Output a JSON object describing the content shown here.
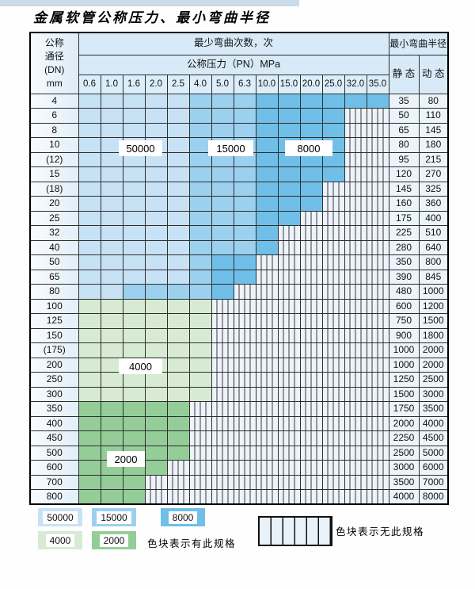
{
  "page_title": "金属软管公称压力、最小弯曲半径",
  "colors": {
    "b1": "#c8e2f5",
    "b2": "#9bd0ef",
    "b3": "#6fbfe9",
    "g1": "#d7ebd3",
    "g2": "#94cd98",
    "nospec_bg": "#edf3fa",
    "header_bg": "#d8eaf8",
    "grid_line": "#2e2e2e"
  },
  "zone_labels": {
    "b1": "50000",
    "b2": "15000",
    "b3": "8000",
    "g1": "4000",
    "g2": "2000"
  },
  "legend": {
    "items": [
      {
        "value": "50000",
        "color": "b1"
      },
      {
        "value": "15000",
        "color": "b2"
      },
      {
        "value": "8000",
        "color": "b3"
      },
      {
        "value": "4000",
        "color": "g1"
      },
      {
        "value": "2000",
        "color": "g2"
      }
    ],
    "has_spec_text": "色块表示有此规格",
    "no_spec_text": "色块表示无此规格"
  },
  "table": {
    "header": {
      "dn_lines": [
        "公称",
        "通径",
        "(DN)",
        "mm"
      ],
      "bend_cycles_title": "最少弯曲次数，次",
      "pressure_title": "公称压力（PN）MPa",
      "pressure_columns": [
        "0.6",
        "1.0",
        "1.6",
        "2.0",
        "2.5",
        "4.0",
        "5.0",
        "6.3",
        "10.0",
        "15.0",
        "20.0",
        "25.0",
        "32.0",
        "35.0"
      ],
      "radius_title": "最小弯曲半径",
      "static_label": "静 态",
      "dynamic_label": "动 态"
    },
    "rows": [
      {
        "dn": "4",
        "cells": [
          "b1",
          "b1",
          "b1",
          "b1",
          "b1",
          "b2",
          "b2",
          "b2",
          "b3",
          "b3",
          "b3",
          "b3",
          "b3",
          "b3"
        ],
        "static": "35",
        "dynamic": "80"
      },
      {
        "dn": "6",
        "cells": [
          "b1",
          "b1",
          "b1",
          "b1",
          "b1",
          "b2",
          "b2",
          "b2",
          "b3",
          "b3",
          "b3",
          "b3",
          "x",
          "x"
        ],
        "static": "50",
        "dynamic": "110"
      },
      {
        "dn": "8",
        "cells": [
          "b1",
          "b1",
          "b1",
          "b1",
          "b1",
          "b2",
          "b2",
          "b2",
          "b3",
          "b3",
          "b3",
          "b3",
          "x",
          "x"
        ],
        "static": "65",
        "dynamic": "145"
      },
      {
        "dn": "10",
        "cells": [
          "b1",
          "b1",
          "b1",
          "b1",
          "b1",
          "b2",
          "b2",
          "b2",
          "b3",
          "b3",
          "b3",
          "b3",
          "x",
          "x"
        ],
        "static": "80",
        "dynamic": "180"
      },
      {
        "dn": "(12)",
        "cells": [
          "b1",
          "b1",
          "b1",
          "b1",
          "b1",
          "b2",
          "b2",
          "b2",
          "b3",
          "b3",
          "b3",
          "b3",
          "x",
          "x"
        ],
        "static": "95",
        "dynamic": "215"
      },
      {
        "dn": "15",
        "cells": [
          "b1",
          "b1",
          "b1",
          "b1",
          "b1",
          "b2",
          "b2",
          "b2",
          "b3",
          "b3",
          "b3",
          "b3",
          "x",
          "x"
        ],
        "static": "120",
        "dynamic": "270"
      },
      {
        "dn": "(18)",
        "cells": [
          "b1",
          "b1",
          "b1",
          "b1",
          "b1",
          "b2",
          "b2",
          "b2",
          "b3",
          "b3",
          "b3",
          "x",
          "x",
          "x"
        ],
        "static": "145",
        "dynamic": "325"
      },
      {
        "dn": "20",
        "cells": [
          "b1",
          "b1",
          "b1",
          "b1",
          "b1",
          "b2",
          "b2",
          "b2",
          "b3",
          "b3",
          "b3",
          "x",
          "x",
          "x"
        ],
        "static": "160",
        "dynamic": "360"
      },
      {
        "dn": "25",
        "cells": [
          "b1",
          "b1",
          "b1",
          "b1",
          "b1",
          "b2",
          "b2",
          "b2",
          "b3",
          "b3",
          "x",
          "x",
          "x",
          "x"
        ],
        "static": "175",
        "dynamic": "400"
      },
      {
        "dn": "32",
        "cells": [
          "b1",
          "b1",
          "b1",
          "b1",
          "b1",
          "b2",
          "b2",
          "b2",
          "b3",
          "x",
          "x",
          "x",
          "x",
          "x"
        ],
        "static": "225",
        "dynamic": "510"
      },
      {
        "dn": "40",
        "cells": [
          "b1",
          "b1",
          "b1",
          "b1",
          "b1",
          "b2",
          "b2",
          "b2",
          "b3",
          "x",
          "x",
          "x",
          "x",
          "x"
        ],
        "static": "280",
        "dynamic": "640"
      },
      {
        "dn": "50",
        "cells": [
          "b1",
          "b1",
          "b1",
          "b1",
          "b1",
          "b2",
          "b3",
          "b3",
          "x",
          "x",
          "x",
          "x",
          "x",
          "x"
        ],
        "static": "350",
        "dynamic": "800"
      },
      {
        "dn": "65",
        "cells": [
          "b1",
          "b1",
          "b1",
          "b1",
          "b1",
          "b2",
          "b3",
          "b3",
          "x",
          "x",
          "x",
          "x",
          "x",
          "x"
        ],
        "static": "390",
        "dynamic": "845"
      },
      {
        "dn": "80",
        "cells": [
          "b1",
          "b1",
          "b2",
          "b2",
          "b2",
          "b2",
          "b3",
          "x",
          "x",
          "x",
          "x",
          "x",
          "x",
          "x"
        ],
        "static": "480",
        "dynamic": "1000"
      },
      {
        "dn": "100",
        "cells": [
          "g1",
          "g1",
          "g1",
          "g1",
          "g1",
          "g1",
          "x",
          "x",
          "x",
          "x",
          "x",
          "x",
          "x",
          "x"
        ],
        "static": "600",
        "dynamic": "1200"
      },
      {
        "dn": "125",
        "cells": [
          "g1",
          "g1",
          "g1",
          "g1",
          "g1",
          "g1",
          "x",
          "x",
          "x",
          "x",
          "x",
          "x",
          "x",
          "x"
        ],
        "static": "750",
        "dynamic": "1500"
      },
      {
        "dn": "150",
        "cells": [
          "g1",
          "g1",
          "g1",
          "g1",
          "g1",
          "g1",
          "x",
          "x",
          "x",
          "x",
          "x",
          "x",
          "x",
          "x"
        ],
        "static": "900",
        "dynamic": "1800"
      },
      {
        "dn": "(175)",
        "cells": [
          "g1",
          "g1",
          "g1",
          "g1",
          "g1",
          "g1",
          "x",
          "x",
          "x",
          "x",
          "x",
          "x",
          "x",
          "x"
        ],
        "static": "1000",
        "dynamic": "2000"
      },
      {
        "dn": "200",
        "cells": [
          "g1",
          "g1",
          "g1",
          "g1",
          "g1",
          "g1",
          "x",
          "x",
          "x",
          "x",
          "x",
          "x",
          "x",
          "x"
        ],
        "static": "1000",
        "dynamic": "2000"
      },
      {
        "dn": "250",
        "cells": [
          "g1",
          "g1",
          "g1",
          "g1",
          "g1",
          "g1",
          "x",
          "x",
          "x",
          "x",
          "x",
          "x",
          "x",
          "x"
        ],
        "static": "1250",
        "dynamic": "2500"
      },
      {
        "dn": "300",
        "cells": [
          "g1",
          "g1",
          "g1",
          "g1",
          "g1",
          "g1",
          "x",
          "x",
          "x",
          "x",
          "x",
          "x",
          "x",
          "x"
        ],
        "static": "1500",
        "dynamic": "3000"
      },
      {
        "dn": "350",
        "cells": [
          "g2",
          "g2",
          "g2",
          "g2",
          "g2",
          "x",
          "x",
          "x",
          "x",
          "x",
          "x",
          "x",
          "x",
          "x"
        ],
        "static": "1750",
        "dynamic": "3500"
      },
      {
        "dn": "400",
        "cells": [
          "g2",
          "g2",
          "g2",
          "g2",
          "g2",
          "x",
          "x",
          "x",
          "x",
          "x",
          "x",
          "x",
          "x",
          "x"
        ],
        "static": "2000",
        "dynamic": "4000"
      },
      {
        "dn": "450",
        "cells": [
          "g2",
          "g2",
          "g2",
          "g2",
          "g2",
          "x",
          "x",
          "x",
          "x",
          "x",
          "x",
          "x",
          "x",
          "x"
        ],
        "static": "2250",
        "dynamic": "4500"
      },
      {
        "dn": "500",
        "cells": [
          "g2",
          "g2",
          "g2",
          "g2",
          "g2",
          "x",
          "x",
          "x",
          "x",
          "x",
          "x",
          "x",
          "x",
          "x"
        ],
        "static": "2500",
        "dynamic": "5000"
      },
      {
        "dn": "600",
        "cells": [
          "g2",
          "g2",
          "g2",
          "g2",
          "x",
          "x",
          "x",
          "x",
          "x",
          "x",
          "x",
          "x",
          "x",
          "x"
        ],
        "static": "3000",
        "dynamic": "6000"
      },
      {
        "dn": "700",
        "cells": [
          "g2",
          "g2",
          "g2",
          "x",
          "x",
          "x",
          "x",
          "x",
          "x",
          "x",
          "x",
          "x",
          "x",
          "x"
        ],
        "static": "3500",
        "dynamic": "7000"
      },
      {
        "dn": "800",
        "cells": [
          "g2",
          "g2",
          "g2",
          "x",
          "x",
          "x",
          "x",
          "x",
          "x",
          "x",
          "x",
          "x",
          "x",
          "x"
        ],
        "static": "4000",
        "dynamic": "8000"
      }
    ]
  }
}
